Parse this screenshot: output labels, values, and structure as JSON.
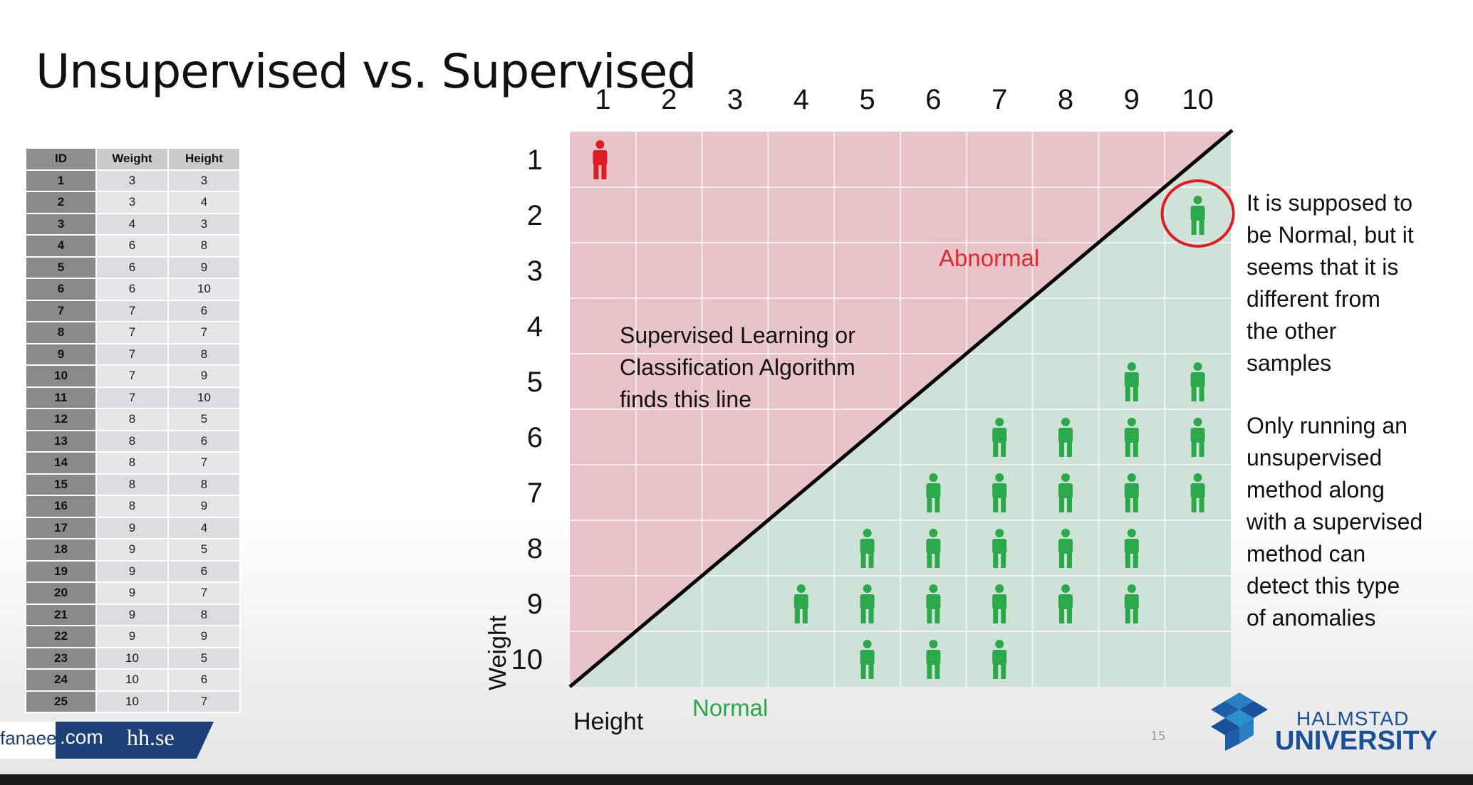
{
  "slide": {
    "title": "Unsupervised vs. Supervised",
    "page_number": "15"
  },
  "table": {
    "headers": [
      "ID",
      "Weight",
      "Height"
    ],
    "rows": [
      [
        "1",
        "3",
        "3"
      ],
      [
        "2",
        "3",
        "4"
      ],
      [
        "3",
        "4",
        "3"
      ],
      [
        "4",
        "6",
        "8"
      ],
      [
        "5",
        "6",
        "9"
      ],
      [
        "6",
        "6",
        "10"
      ],
      [
        "7",
        "7",
        "6"
      ],
      [
        "8",
        "7",
        "7"
      ],
      [
        "9",
        "7",
        "8"
      ],
      [
        "10",
        "7",
        "9"
      ],
      [
        "11",
        "7",
        "10"
      ],
      [
        "12",
        "8",
        "5"
      ],
      [
        "13",
        "8",
        "6"
      ],
      [
        "14",
        "8",
        "7"
      ],
      [
        "15",
        "8",
        "8"
      ],
      [
        "16",
        "8",
        "9"
      ],
      [
        "17",
        "9",
        "4"
      ],
      [
        "18",
        "9",
        "5"
      ],
      [
        "19",
        "9",
        "6"
      ],
      [
        "20",
        "9",
        "7"
      ],
      [
        "21",
        "9",
        "8"
      ],
      [
        "22",
        "9",
        "9"
      ],
      [
        "23",
        "10",
        "5"
      ],
      [
        "24",
        "10",
        "6"
      ],
      [
        "25",
        "10",
        "7"
      ]
    ]
  },
  "chart_data": {
    "type": "scatter",
    "x_ticks": [
      "1",
      "2",
      "3",
      "4",
      "5",
      "6",
      "7",
      "8",
      "9",
      "10"
    ],
    "y_ticks": [
      "1",
      "2",
      "3",
      "4",
      "5",
      "6",
      "7",
      "8",
      "9",
      "10"
    ],
    "xlabel": "Height",
    "ylabel": "Weight",
    "xlim": [
      1,
      10
    ],
    "ylim": [
      1,
      10
    ],
    "region_labels": {
      "upper": "Abnormal",
      "lower": "Normal"
    },
    "line_label": [
      "Supervised Learning or",
      "Classification Algorithm",
      "finds this line"
    ],
    "abnormal_points": [
      {
        "x": 1,
        "y": 1
      }
    ],
    "normal_points": [
      {
        "x": 10,
        "y": 2,
        "circled": true
      },
      {
        "x": 9,
        "y": 5
      },
      {
        "x": 10,
        "y": 5
      },
      {
        "x": 7,
        "y": 6
      },
      {
        "x": 8,
        "y": 6
      },
      {
        "x": 9,
        "y": 6
      },
      {
        "x": 10,
        "y": 6
      },
      {
        "x": 6,
        "y": 7
      },
      {
        "x": 7,
        "y": 7
      },
      {
        "x": 8,
        "y": 7
      },
      {
        "x": 9,
        "y": 7
      },
      {
        "x": 10,
        "y": 7
      },
      {
        "x": 5,
        "y": 8
      },
      {
        "x": 6,
        "y": 8
      },
      {
        "x": 7,
        "y": 8
      },
      {
        "x": 8,
        "y": 8
      },
      {
        "x": 9,
        "y": 8
      },
      {
        "x": 4,
        "y": 9
      },
      {
        "x": 5,
        "y": 9
      },
      {
        "x": 6,
        "y": 9
      },
      {
        "x": 7,
        "y": 9
      },
      {
        "x": 8,
        "y": 9
      },
      {
        "x": 9,
        "y": 9
      },
      {
        "x": 5,
        "y": 10
      },
      {
        "x": 6,
        "y": 10
      },
      {
        "x": 7,
        "y": 10
      }
    ],
    "colors": {
      "abnormal_region": "#e8c3c8",
      "normal_region": "#cfe2d7",
      "abnormal_point": "#e01b24",
      "normal_point": "#2aa84a",
      "abnormal_label": "#e0282e",
      "normal_label": "#2aa84a"
    }
  },
  "notes": {
    "para1": [
      "It is supposed to",
      "be Normal, but it",
      "seems that it is",
      "different from",
      "the other",
      "samples"
    ],
    "para2": [
      "Only running an",
      "unsupervised",
      "method along",
      "with a supervised",
      "method can",
      "detect this type",
      "of anomalies"
    ]
  },
  "footer": {
    "domain_left": "fanaee",
    "domain_suffix": ".com",
    "domain_right": "hh.se",
    "university_line1": "HALMSTAD",
    "university_line2": "UNIVERSITY",
    "brand_color": "#1a4f9a"
  }
}
